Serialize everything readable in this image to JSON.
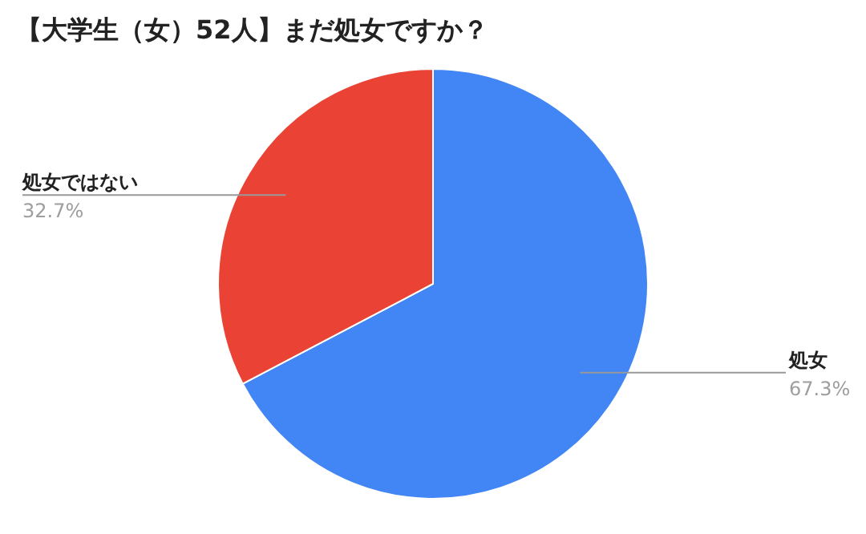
{
  "chart_data": {
    "type": "pie",
    "title": "【大学生（女）52人】まだ処女ですか？",
    "categories": [
      "処女",
      "処女ではない"
    ],
    "values": [
      67.3,
      32.7
    ],
    "colors": [
      "#4285f4",
      "#ea4335"
    ],
    "value_labels": [
      "67.3%",
      "32.7%"
    ],
    "legend": false
  }
}
